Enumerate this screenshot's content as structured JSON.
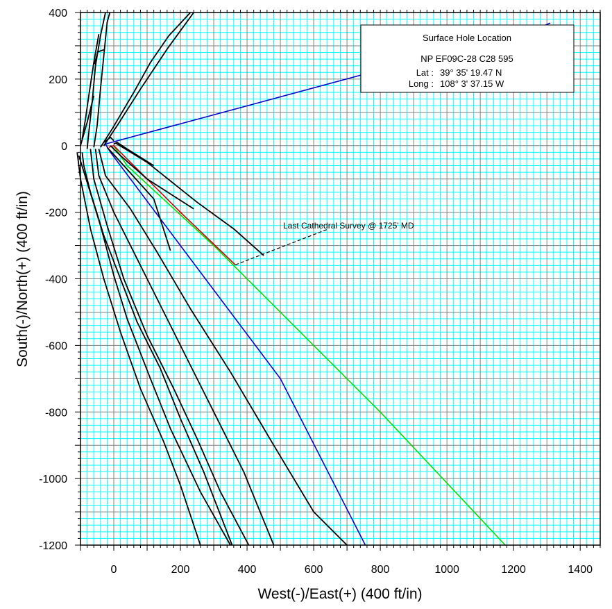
{
  "chart_data": {
    "type": "line",
    "xlabel": "West(-)/East(+) (400 ft/in)",
    "ylabel": "South(-)/North(+) (400 ft/in)",
    "xlim": [
      -100,
      1460
    ],
    "ylim": [
      -1200,
      400
    ],
    "x_ticks": [
      0,
      200,
      400,
      600,
      800,
      1000,
      1200,
      1400
    ],
    "y_ticks": [
      400,
      200,
      0,
      -200,
      -400,
      -600,
      -800,
      -1000,
      -1200
    ],
    "grid": true,
    "major_grid_step": 100,
    "minor_grid_step": 20,
    "grid_colors": {
      "minor": "#00ffff",
      "major": "#808080",
      "background": "#ffffff"
    },
    "series_colors": {
      "offset_wells": "#000000",
      "blue_plan": "#0000cc",
      "green_plan": "#00dd00",
      "red_actual": "#cc0000",
      "annotation_leader": "#000000"
    },
    "info_box": {
      "title": "Surface Hole Location",
      "well": "NP EF09C-28 C28 595",
      "lat_label": "Lat :",
      "lat_value": "39° 35' 19.47 N",
      "long_label": "Long :",
      "long_value": "108° 3' 37.15 W"
    },
    "annotation": {
      "text": "Last Cathedral Survey @ 1725' MD",
      "point": [
        365,
        -358
      ],
      "leader_end": [
        645,
        -250
      ]
    },
    "series": [
      {
        "color_key": "blue_plan",
        "points": [
          [
            -25,
            5
          ],
          [
            1290,
            360
          ],
          [
            1310,
            368
          ]
        ]
      },
      {
        "color_key": "blue_plan",
        "points": [
          [
            -25,
            5
          ],
          [
            -10,
            -20
          ],
          [
            200,
            -300
          ],
          [
            500,
            -700
          ],
          [
            755,
            -1200
          ]
        ]
      },
      {
        "color_key": "green_plan",
        "points": [
          [
            0,
            0
          ],
          [
            40,
            -60
          ],
          [
            300,
            -300
          ],
          [
            800,
            -800
          ],
          [
            1175,
            -1200
          ]
        ]
      },
      {
        "color_key": "red_actual",
        "points": [
          [
            -15,
            -5
          ],
          [
            0,
            0
          ],
          [
            15,
            -15
          ],
          [
            60,
            -60
          ],
          [
            200,
            -200
          ],
          [
            365,
            -358
          ]
        ]
      },
      {
        "color_key": "offset_wells",
        "points": [
          [
            -80,
            -10
          ],
          [
            -75,
            40
          ],
          [
            -65,
            130
          ],
          [
            -55,
            240
          ],
          [
            -40,
            330
          ],
          [
            -25,
            400
          ]
        ]
      },
      {
        "color_key": "offset_wells",
        "points": [
          [
            -60,
            -5
          ],
          [
            -50,
            60
          ],
          [
            -40,
            170
          ],
          [
            -30,
            270
          ],
          [
            -20,
            370
          ],
          [
            -12,
            400
          ]
        ]
      },
      {
        "color_key": "offset_wells",
        "points": [
          [
            -58,
            245
          ],
          [
            -48,
            282
          ],
          [
            -30,
            288
          ]
        ]
      },
      {
        "color_key": "offset_wells",
        "points": [
          [
            -95,
            20
          ],
          [
            -85,
            80
          ],
          [
            -75,
            150
          ],
          [
            -60,
            250
          ],
          [
            -45,
            335
          ]
        ]
      },
      {
        "color_key": "offset_wells",
        "points": [
          [
            -100,
            0
          ],
          [
            -80,
            70
          ],
          [
            -60,
            150
          ]
        ]
      },
      {
        "color_key": "offset_wells",
        "points": [
          [
            -40,
            -5
          ],
          [
            -5,
            50
          ],
          [
            60,
            160
          ],
          [
            110,
            250
          ],
          [
            165,
            330
          ],
          [
            230,
            400
          ]
        ]
      },
      {
        "color_key": "offset_wells",
        "points": [
          [
            -30,
            0
          ],
          [
            10,
            60
          ],
          [
            80,
            170
          ],
          [
            160,
            290
          ],
          [
            240,
            400
          ]
        ]
      },
      {
        "color_key": "offset_wells",
        "points": [
          [
            -30,
            10
          ],
          [
            -10,
            25
          ],
          [
            0,
            15
          ]
        ]
      },
      {
        "color_key": "offset_wells",
        "points": [
          [
            0,
            5
          ],
          [
            10,
            10
          ],
          [
            40,
            -10
          ],
          [
            120,
            -60
          ]
        ]
      },
      {
        "color_key": "offset_wells",
        "points": [
          [
            -10,
            0
          ],
          [
            20,
            -30
          ],
          [
            100,
            -100
          ],
          [
            240,
            -190
          ]
        ]
      },
      {
        "color_key": "offset_wells",
        "points": [
          [
            -20,
            -5
          ],
          [
            30,
            -60
          ],
          [
            120,
            -160
          ],
          [
            170,
            -315
          ]
        ]
      },
      {
        "color_key": "offset_wells",
        "points": [
          [
            5,
            8
          ],
          [
            100,
            -50
          ],
          [
            250,
            -170
          ],
          [
            360,
            -250
          ],
          [
            450,
            -330
          ]
        ]
      },
      {
        "color_key": "offset_wells",
        "points": [
          [
            -45,
            -10
          ],
          [
            -25,
            -90
          ],
          [
            50,
            -190
          ],
          [
            130,
            -320
          ],
          [
            230,
            -490
          ],
          [
            350,
            -680
          ],
          [
            480,
            -900
          ],
          [
            600,
            -1100
          ],
          [
            700,
            -1200
          ]
        ]
      },
      {
        "color_key": "offset_wells",
        "points": [
          [
            -55,
            -10
          ],
          [
            -45,
            -90
          ],
          [
            0,
            -200
          ],
          [
            70,
            -340
          ],
          [
            150,
            -500
          ],
          [
            230,
            -660
          ],
          [
            310,
            -820
          ],
          [
            390,
            -980
          ],
          [
            480,
            -1200
          ]
        ]
      },
      {
        "color_key": "offset_wells",
        "points": [
          [
            -70,
            -10
          ],
          [
            -60,
            -100
          ],
          [
            -20,
            -240
          ],
          [
            30,
            -400
          ],
          [
            100,
            -570
          ],
          [
            180,
            -730
          ],
          [
            250,
            -880
          ],
          [
            320,
            -1040
          ],
          [
            405,
            -1200
          ]
        ]
      },
      {
        "color_key": "offset_wells",
        "points": [
          [
            -95,
            -20
          ],
          [
            -90,
            -60
          ],
          [
            -70,
            -140
          ],
          [
            -30,
            -270
          ],
          [
            20,
            -400
          ],
          [
            70,
            -530
          ],
          [
            140,
            -670
          ],
          [
            200,
            -820
          ],
          [
            270,
            -980
          ],
          [
            355,
            -1200
          ]
        ]
      },
      {
        "color_key": "offset_wells",
        "points": [
          [
            -105,
            -30
          ],
          [
            -80,
            -110
          ],
          [
            -40,
            -240
          ],
          [
            0,
            -390
          ],
          [
            40,
            -520
          ],
          [
            110,
            -700
          ],
          [
            170,
            -850
          ],
          [
            260,
            -1040
          ],
          [
            350,
            -1200
          ]
        ]
      },
      {
        "color_key": "offset_wells",
        "points": [
          [
            -110,
            -20
          ],
          [
            -100,
            -100
          ],
          [
            -70,
            -250
          ],
          [
            -30,
            -400
          ],
          [
            20,
            -560
          ],
          [
            80,
            -730
          ],
          [
            150,
            -890
          ],
          [
            200,
            -1020
          ],
          [
            260,
            -1200
          ]
        ]
      }
    ]
  }
}
